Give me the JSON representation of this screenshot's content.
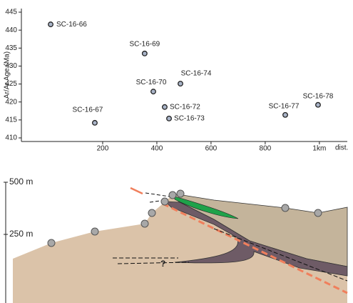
{
  "chart_data": {
    "type": "scatter",
    "y_label": "Ar/Ar Age (Ma)",
    "x_label": "dist.",
    "x": [
      8,
      355,
      487,
      387,
      429,
      445,
      171,
      874,
      995
    ],
    "values": [
      441.6,
      433.5,
      425.1,
      422.9,
      418.6,
      415.4,
      414.2,
      416.4,
      419.2
    ],
    "point_labels": [
      "SC-16-66",
      "SC-16-69",
      "SC-16-74",
      "SC-16-70",
      "SC-16-72",
      "SC-16-73",
      "SC-16-67",
      "SC-16-77",
      "SC-16-78"
    ],
    "color": "#a9b4c8",
    "xlim": [
      -100,
      1103
    ],
    "xticks": [
      200,
      400,
      600,
      800,
      {
        "value": 1000,
        "label": "1km"
      }
    ],
    "ylim": [
      409,
      446
    ],
    "yticks": [
      410,
      415,
      420,
      425,
      430,
      435,
      440,
      445
    ]
  },
  "section": {
    "scale_labels": [
      "500 m",
      "250 m"
    ],
    "unknown": "?"
  }
}
